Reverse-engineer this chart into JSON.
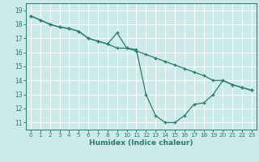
{
  "xlabel": "Humidex (Indice chaleur)",
  "background_color": "#cceaea",
  "grid_color": "#ffffff",
  "line_color": "#2a7a6a",
  "xlim": [
    -0.5,
    23.5
  ],
  "ylim": [
    10.5,
    19.5
  ],
  "xticks": [
    0,
    1,
    2,
    3,
    4,
    5,
    6,
    7,
    8,
    9,
    10,
    11,
    12,
    13,
    14,
    15,
    16,
    17,
    18,
    19,
    20,
    21,
    22,
    23
  ],
  "yticks": [
    11,
    12,
    13,
    14,
    15,
    16,
    17,
    18,
    19
  ],
  "line1_x": [
    0,
    1,
    2,
    3,
    4,
    5,
    6,
    7,
    8,
    9,
    10,
    11,
    12,
    13,
    14,
    15,
    16,
    17,
    18,
    19,
    20,
    21,
    22,
    23
  ],
  "line1_y": [
    18.6,
    18.3,
    18.0,
    17.8,
    17.7,
    17.5,
    17.0,
    16.8,
    16.6,
    17.4,
    16.3,
    16.2,
    13.0,
    11.5,
    11.0,
    11.0,
    11.5,
    12.3,
    12.4,
    13.0,
    14.0,
    13.7,
    13.5,
    13.3
  ],
  "line2_x": [
    0,
    1,
    2,
    3,
    4,
    5,
    6,
    7,
    8,
    9,
    10,
    11,
    12,
    13,
    14,
    15,
    16,
    17,
    18,
    19,
    20,
    21,
    22,
    23
  ],
  "line2_y": [
    18.6,
    18.3,
    18.0,
    17.8,
    17.7,
    17.5,
    17.0,
    16.8,
    16.6,
    16.3,
    16.3,
    16.1,
    15.85,
    15.6,
    15.35,
    15.1,
    14.85,
    14.6,
    14.35,
    14.0,
    14.0,
    13.7,
    13.5,
    13.3
  ]
}
